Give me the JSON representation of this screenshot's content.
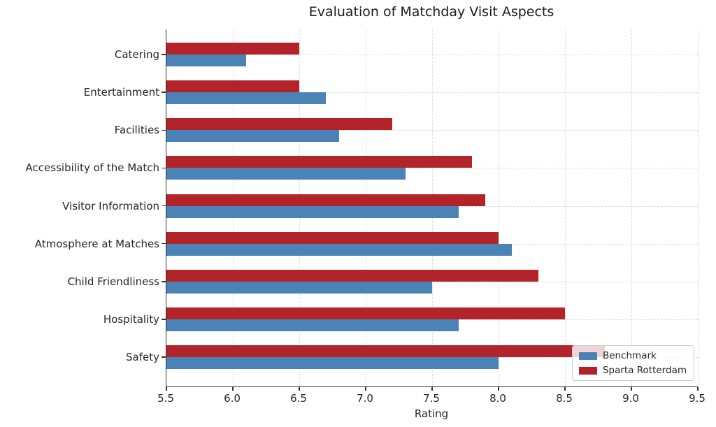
{
  "chart_data": {
    "type": "bar",
    "orientation": "horizontal",
    "title": "Evaluation of Matchday Visit Aspects",
    "xlabel": "Rating",
    "ylabel": "",
    "categories": [
      "Catering",
      "Entertainment",
      "Facilities",
      "Accessibility of the Match",
      "Visitor Information",
      "Atmosphere at Matches",
      "Child Friendliness",
      "Hospitality",
      "Safety"
    ],
    "series": [
      {
        "name": "Benchmark",
        "color": "#4C83B6",
        "values": [
          6.1,
          6.7,
          6.8,
          7.3,
          7.7,
          8.1,
          7.5,
          7.7,
          8.0
        ]
      },
      {
        "name": "Sparta Rotterdam",
        "color": "#B2232A",
        "values": [
          6.5,
          6.5,
          7.2,
          7.8,
          7.9,
          8.0,
          8.3,
          8.5,
          8.8
        ]
      }
    ],
    "xlim": [
      5.5,
      9.5
    ],
    "xticks": [
      5.5,
      6.0,
      6.5,
      7.0,
      7.5,
      8.0,
      8.5,
      9.0,
      9.5
    ],
    "grid": "dashed",
    "grid_color": "#DCDCDC",
    "legend_position": "lower right",
    "bar_layout_note": "In each category the Sparta Rotterdam bar is drawn above the Benchmark bar"
  }
}
